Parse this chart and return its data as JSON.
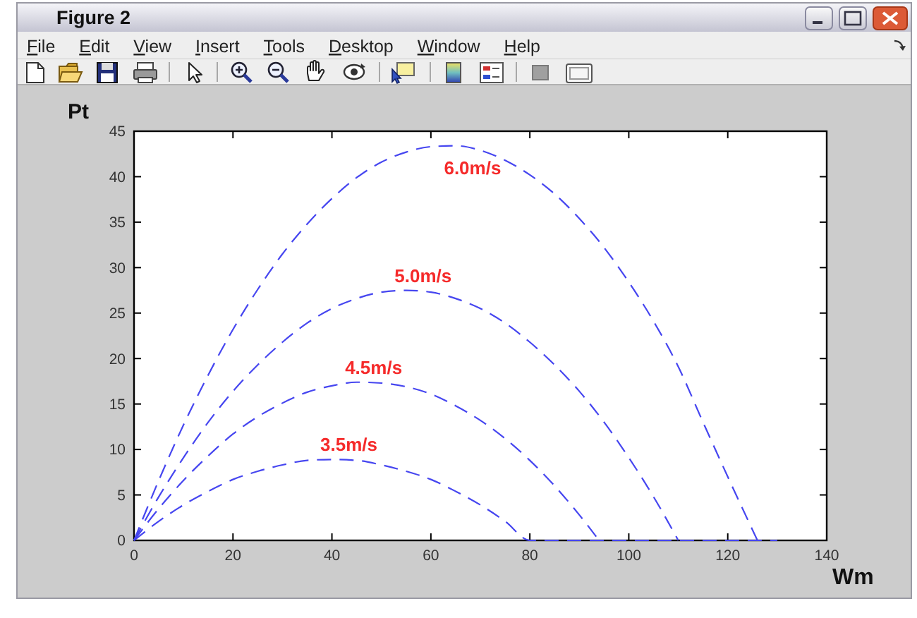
{
  "chart_data": {
    "type": "line",
    "title": "Figure 2",
    "xlabel": "Wm",
    "ylabel": "Pt",
    "xlim": [
      0,
      140
    ],
    "ylim": [
      0,
      45
    ],
    "xticks": [
      0,
      20,
      40,
      60,
      80,
      100,
      120,
      140
    ],
    "yticks": [
      0,
      5,
      10,
      15,
      20,
      25,
      30,
      35,
      40,
      45
    ],
    "line_style": "dashed",
    "annotations": [
      "File",
      "Edit",
      "View",
      "Insert",
      "Tools",
      "Desktop",
      "Window",
      "Help"
    ],
    "series": [
      {
        "name": "3.5m/s",
        "color": "#4646f0",
        "x": [
          0,
          5,
          10,
          15,
          20,
          25,
          30,
          35,
          40,
          45,
          50,
          55,
          60,
          65,
          70,
          75,
          80,
          130
        ],
        "values": [
          0,
          2.1,
          3.9,
          5.4,
          6.7,
          7.6,
          8.3,
          8.8,
          8.9,
          8.8,
          8.3,
          7.6,
          6.7,
          5.4,
          3.9,
          2.1,
          0,
          0
        ]
      },
      {
        "name": "4.5m/s",
        "color": "#4646f0",
        "x": [
          0,
          5,
          10,
          15,
          20,
          25,
          30,
          35,
          40,
          45,
          50,
          55,
          60,
          65,
          70,
          75,
          80,
          85,
          90,
          94
        ],
        "values": [
          0,
          3.5,
          6.6,
          9.3,
          11.7,
          13.6,
          15.1,
          16.3,
          17.0,
          17.4,
          17.3,
          16.9,
          16.1,
          14.8,
          13.2,
          11.2,
          8.8,
          6.0,
          2.8,
          0
        ]
      },
      {
        "name": "5.0m/s",
        "color": "#4646f0",
        "x": [
          0,
          5,
          10,
          15,
          20,
          25,
          30,
          35,
          40,
          45,
          50,
          55,
          60,
          65,
          70,
          75,
          80,
          85,
          90,
          95,
          100,
          105,
          110
        ],
        "values": [
          0,
          4.8,
          9.1,
          13.0,
          16.4,
          19.3,
          21.8,
          23.9,
          25.5,
          26.6,
          27.3,
          27.5,
          27.3,
          26.6,
          25.5,
          23.9,
          21.8,
          19.3,
          16.4,
          13.0,
          9.1,
          4.8,
          0
        ]
      },
      {
        "name": "6.0m/s",
        "color": "#4646f0",
        "x": [
          0,
          5,
          10,
          15,
          20,
          25,
          30,
          35,
          40,
          45,
          50,
          55,
          60,
          65,
          70,
          75,
          80,
          85,
          90,
          95,
          100,
          105,
          110,
          115,
          120,
          126
        ],
        "values": [
          0,
          6.6,
          12.7,
          18.2,
          23.2,
          27.6,
          31.5,
          34.8,
          37.6,
          39.9,
          41.6,
          42.7,
          43.3,
          43.4,
          42.9,
          41.8,
          40.2,
          38.1,
          35.4,
          32.2,
          28.4,
          24.1,
          19.1,
          13.0,
          7.0,
          0
        ]
      }
    ]
  }
}
